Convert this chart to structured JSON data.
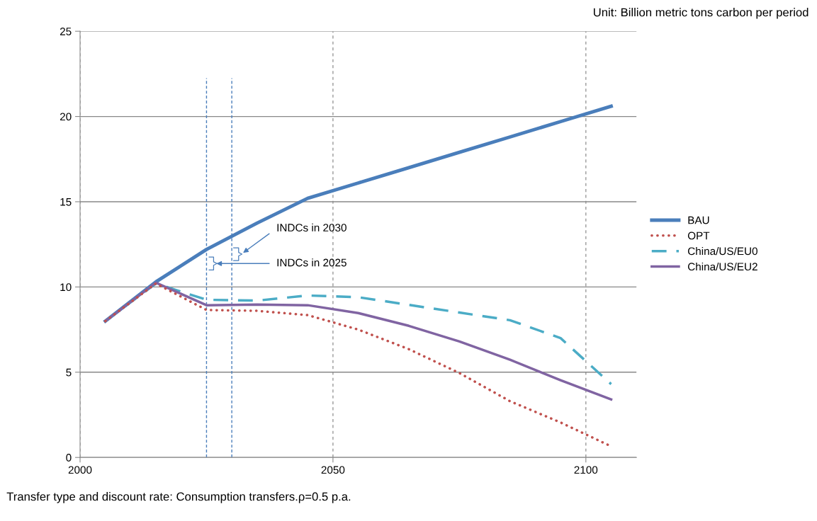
{
  "chart_data": {
    "type": "line",
    "x": [
      2005,
      2015,
      2025,
      2035,
      2045,
      2055,
      2065,
      2075,
      2085,
      2095,
      2105
    ],
    "series": [
      {
        "name": "BAU",
        "color": "#4a7ebb",
        "line_style": "solid",
        "values": [
          8.0,
          10.3,
          12.2,
          13.75,
          15.2,
          16.1,
          17.0,
          17.9,
          18.8,
          19.7,
          20.6
        ]
      },
      {
        "name": "OPT",
        "color": "#c0504d",
        "line_style": "dotted",
        "values": [
          8.0,
          10.2,
          8.65,
          8.6,
          8.35,
          7.5,
          6.35,
          4.95,
          3.3,
          2.05,
          0.65
        ]
      },
      {
        "name": "China/US/EU0",
        "color": "#4bacc6",
        "line_style": "dashed",
        "values": [
          8.0,
          10.2,
          9.25,
          9.2,
          9.5,
          9.4,
          8.95,
          8.5,
          8.05,
          7.0,
          4.3
        ]
      },
      {
        "name": "China/US/EU2",
        "color": "#8064a2",
        "line_style": "solid",
        "values": [
          8.0,
          10.25,
          8.93,
          8.97,
          8.93,
          8.47,
          7.72,
          6.8,
          5.73,
          4.53,
          3.4
        ]
      }
    ],
    "xlim": [
      2000,
      2110
    ],
    "xticks": [
      2000,
      2050,
      2100
    ],
    "ylim": [
      0,
      25
    ],
    "yticks": [
      0,
      5,
      10,
      15,
      20,
      25
    ],
    "grid": true,
    "legend": "right",
    "marker": "none",
    "ref_lines": [
      {
        "axis": "x",
        "value": 2025,
        "color": "#4a7ebb",
        "line_style": "dashed"
      },
      {
        "axis": "x",
        "value": 2030,
        "color": "#4a7ebb",
        "line_style": "dashed"
      }
    ],
    "annotations": [
      "INDCs in 2030",
      "INDCs in 2025",
      "Unit: Billion metric tons carbon per period",
      "Transfer type and discount rate: Consumption transfers.ρ=0.5 p.a."
    ]
  }
}
